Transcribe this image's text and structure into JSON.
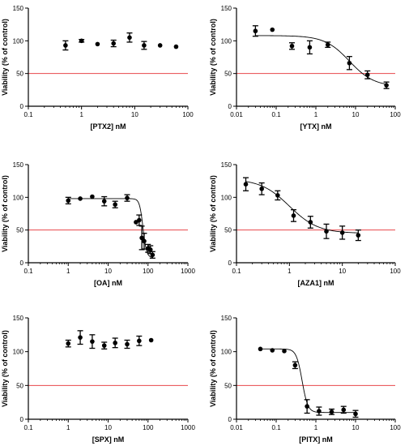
{
  "figure": {
    "colors": {
      "axis": "#000000",
      "point": "#000000",
      "fit_line": "#000000",
      "threshold_line": "#e8474c"
    }
  },
  "chart_data": [
    {
      "type": "scatter",
      "title": "",
      "xlabel": "[PTX2] nM",
      "ylabel": "Viability (% of control)",
      "xscale": "log",
      "xlim": [
        0.1,
        100
      ],
      "x_ticks": [
        0.1,
        1,
        10,
        100
      ],
      "x_tick_labels": [
        "0.1",
        "1",
        "10",
        "100"
      ],
      "ylim": [
        0,
        150
      ],
      "y_ticks": [
        0,
        50,
        100,
        150
      ],
      "y_tick_labels": [
        "0",
        "50",
        "100",
        "150"
      ],
      "threshold": 50,
      "fit_curve": null,
      "points": [
        {
          "x": 0.5,
          "y": 93,
          "err": 7
        },
        {
          "x": 1,
          "y": 100,
          "err": 2
        },
        {
          "x": 2,
          "y": 95,
          "err": 0
        },
        {
          "x": 4,
          "y": 96,
          "err": 5
        },
        {
          "x": 8,
          "y": 105,
          "err": 7
        },
        {
          "x": 15,
          "y": 93,
          "err": 6
        },
        {
          "x": 30,
          "y": 93,
          "err": 0
        },
        {
          "x": 60,
          "y": 91,
          "err": 0
        }
      ],
      "grid": false,
      "legend": "none"
    },
    {
      "type": "scatter",
      "title": "",
      "xlabel": "[YTX] nM",
      "ylabel": "Viability (% of control)",
      "xscale": "log",
      "xlim": [
        0.01,
        100
      ],
      "x_ticks": [
        0.01,
        0.1,
        1,
        10,
        100
      ],
      "x_tick_labels": [
        "0.01",
        "0.1",
        "1",
        "10",
        "100"
      ],
      "ylim": [
        0,
        150
      ],
      "y_ticks": [
        0,
        50,
        100,
        150
      ],
      "y_tick_labels": [
        "0",
        "50",
        "100",
        "150"
      ],
      "threshold": 50,
      "fit_curve": {
        "top": 108,
        "bottom": 30,
        "ic50": 7,
        "hill": -1.4,
        "x_range": [
          0.03,
          60
        ]
      },
      "points": [
        {
          "x": 0.03,
          "y": 115,
          "err": 8
        },
        {
          "x": 0.08,
          "y": 117,
          "err": 0
        },
        {
          "x": 0.25,
          "y": 92,
          "err": 5
        },
        {
          "x": 0.7,
          "y": 90,
          "err": 10
        },
        {
          "x": 2,
          "y": 94,
          "err": 4
        },
        {
          "x": 7,
          "y": 66,
          "err": 10
        },
        {
          "x": 20,
          "y": 48,
          "err": 6
        },
        {
          "x": 60,
          "y": 32,
          "err": 5
        }
      ],
      "grid": false,
      "legend": "none"
    },
    {
      "type": "scatter",
      "title": "",
      "xlabel": "[OA] nM",
      "ylabel": "Viability (% of control)",
      "xscale": "log",
      "xlim": [
        0.1,
        1000
      ],
      "x_ticks": [
        0.1,
        1,
        10,
        100,
        1000
      ],
      "x_tick_labels": [
        "0.1",
        "1",
        "10",
        "100",
        "1000"
      ],
      "ylim": [
        0,
        150
      ],
      "y_ticks": [
        0,
        50,
        100,
        150
      ],
      "y_tick_labels": [
        "0",
        "50",
        "100",
        "150"
      ],
      "threshold": 50,
      "fit_curve": {
        "top": 98,
        "bottom": 8,
        "ic50": 75,
        "hill": -10,
        "x_range": [
          1,
          130
        ]
      },
      "points": [
        {
          "x": 1,
          "y": 95,
          "err": 5
        },
        {
          "x": 2,
          "y": 98,
          "err": 0
        },
        {
          "x": 4,
          "y": 101,
          "err": 0
        },
        {
          "x": 8,
          "y": 94,
          "err": 7
        },
        {
          "x": 15,
          "y": 89,
          "err": 5
        },
        {
          "x": 30,
          "y": 99,
          "err": 5
        },
        {
          "x": 50,
          "y": 62,
          "err": 0
        },
        {
          "x": 60,
          "y": 65,
          "err": 8
        },
        {
          "x": 70,
          "y": 38,
          "err": 18
        },
        {
          "x": 80,
          "y": 33,
          "err": 12
        },
        {
          "x": 100,
          "y": 22,
          "err": 6
        },
        {
          "x": 115,
          "y": 20,
          "err": 6
        },
        {
          "x": 130,
          "y": 12,
          "err": 5
        }
      ],
      "grid": false,
      "legend": "none"
    },
    {
      "type": "scatter",
      "title": "",
      "xlabel": "[AZA1] nM",
      "ylabel": "Viability (% of control)",
      "xscale": "log",
      "xlim": [
        0.1,
        100
      ],
      "x_ticks": [
        0.1,
        1,
        10,
        100
      ],
      "x_tick_labels": [
        "0.1",
        "1",
        "10",
        "100"
      ],
      "ylim": [
        0,
        150
      ],
      "y_ticks": [
        0,
        50,
        100,
        150
      ],
      "y_tick_labels": [
        "0",
        "50",
        "100",
        "150"
      ],
      "threshold": 50,
      "fit_curve": {
        "top": 128,
        "bottom": 45,
        "ic50": 1,
        "hill": -1.6,
        "x_range": [
          0.15,
          20
        ]
      },
      "points": [
        {
          "x": 0.15,
          "y": 120,
          "err": 10
        },
        {
          "x": 0.3,
          "y": 113,
          "err": 9
        },
        {
          "x": 0.6,
          "y": 103,
          "err": 7
        },
        {
          "x": 1.2,
          "y": 72,
          "err": 9
        },
        {
          "x": 2.5,
          "y": 62,
          "err": 9
        },
        {
          "x": 5,
          "y": 48,
          "err": 11
        },
        {
          "x": 10,
          "y": 46,
          "err": 10
        },
        {
          "x": 20,
          "y": 42,
          "err": 8
        }
      ],
      "grid": false,
      "legend": "none"
    },
    {
      "type": "scatter",
      "title": "",
      "xlabel": "[SPX] nM",
      "ylabel": "Viability (% of control)",
      "xscale": "log",
      "xlim": [
        0.1,
        1000
      ],
      "x_ticks": [
        0.1,
        1,
        10,
        100,
        1000
      ],
      "x_tick_labels": [
        "0.1",
        "1",
        "10",
        "100",
        "1000"
      ],
      "ylim": [
        0,
        150
      ],
      "y_ticks": [
        0,
        50,
        100,
        150
      ],
      "y_tick_labels": [
        "0",
        "50",
        "100",
        "150"
      ],
      "threshold": 50,
      "fit_curve": null,
      "points": [
        {
          "x": 1,
          "y": 112,
          "err": 5
        },
        {
          "x": 2,
          "y": 121,
          "err": 10
        },
        {
          "x": 4,
          "y": 115,
          "err": 10
        },
        {
          "x": 8,
          "y": 109,
          "err": 5
        },
        {
          "x": 15,
          "y": 113,
          "err": 7
        },
        {
          "x": 30,
          "y": 111,
          "err": 6
        },
        {
          "x": 60,
          "y": 116,
          "err": 7
        },
        {
          "x": 120,
          "y": 117,
          "err": 0
        }
      ],
      "grid": false,
      "legend": "none"
    },
    {
      "type": "scatter",
      "title": "",
      "xlabel": "[PlTX] nM",
      "ylabel": "Viability (% of control)",
      "xscale": "log",
      "xlim": [
        0.01,
        100
      ],
      "x_ticks": [
        0.01,
        0.1,
        1,
        10,
        100
      ],
      "x_tick_labels": [
        "0.01",
        "0.1",
        "1",
        "10",
        "100"
      ],
      "ylim": [
        0,
        150
      ],
      "y_ticks": [
        0,
        50,
        100,
        150
      ],
      "y_tick_labels": [
        "0",
        "50",
        "100",
        "150"
      ],
      "threshold": 50,
      "fit_curve": {
        "top": 104,
        "bottom": 10,
        "ic50": 0.45,
        "hill": -6,
        "x_range": [
          0.04,
          10
        ]
      },
      "points": [
        {
          "x": 0.04,
          "y": 104,
          "err": 0
        },
        {
          "x": 0.08,
          "y": 102,
          "err": 0
        },
        {
          "x": 0.16,
          "y": 101,
          "err": 0
        },
        {
          "x": 0.3,
          "y": 80,
          "err": 5
        },
        {
          "x": 0.6,
          "y": 19,
          "err": 10
        },
        {
          "x": 1.2,
          "y": 12,
          "err": 6
        },
        {
          "x": 2.5,
          "y": 11,
          "err": 4
        },
        {
          "x": 5,
          "y": 14,
          "err": 5
        },
        {
          "x": 10,
          "y": 8,
          "err": 5
        }
      ],
      "grid": false,
      "legend": "none"
    }
  ]
}
